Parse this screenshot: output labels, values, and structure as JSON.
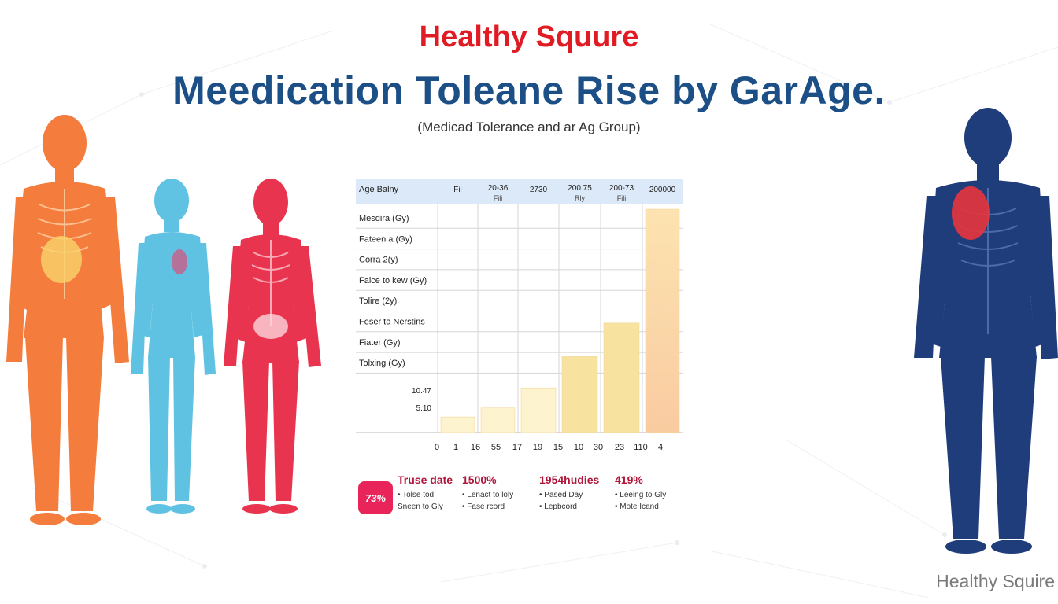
{
  "header": {
    "brand": "Healthy Squure",
    "title": "Meedication Toleane Rise by GarAge.",
    "subtitle": "(Medicad Tolerance and ar Ag Group)"
  },
  "chart_data": {
    "type": "bar",
    "table_header": {
      "first": "Age Balny",
      "columns": [
        {
          "line1": "Fil",
          "line2": ""
        },
        {
          "line1": "20-36",
          "line2": "Fili"
        },
        {
          "line1": "2730",
          "line2": ""
        },
        {
          "line1": "200.75",
          "line2": "Rly"
        },
        {
          "line1": "200-73",
          "line2": "Fili"
        },
        {
          "line1": "200000",
          "line2": ""
        }
      ]
    },
    "row_labels": [
      "Mesdira (Gy)",
      "Fateen a (Gy)",
      "Corra 2(y)",
      "Falce to kew (Gy)",
      "Tolire (2y)",
      "Feser to Nerstins",
      "Fiater (Gy)",
      "Tolxing (Gy)"
    ],
    "y_tick_labels": [
      "10.47",
      "5.10"
    ],
    "x_tick_labels": [
      "0",
      "1",
      "16",
      "55",
      "17",
      "19",
      "15",
      "10",
      "30",
      "23",
      "110",
      "4"
    ],
    "values": [
      0.07,
      0.11,
      0.2,
      0.34,
      0.49,
      1.0
    ],
    "colors": {
      "bar_light": "#fdf3cf",
      "bar_mid": "#f8e2a0",
      "bar_last_top": "#fce3b0",
      "bar_last_bottom": "#f9cba0",
      "header_bg": "#dce9f8",
      "grid": "#d5d5d5"
    }
  },
  "stats": {
    "badge": "73%",
    "items": [
      {
        "head": "Truse date",
        "lines": [
          "• Tolse tod",
          "Sneen to Gly"
        ]
      },
      {
        "head": "1500%",
        "lines": [
          "• Lenact to loly",
          "• Fase rcord"
        ]
      },
      {
        "head": "1954hudies",
        "lines": [
          "• Pased Day",
          "• Lepbcord"
        ]
      },
      {
        "head": "419%",
        "lines": [
          "• Leeing to Gly",
          "• Mote Icand"
        ]
      }
    ]
  },
  "figures": {
    "orange_color": "#f47c3c",
    "blue_color": "#45b8de",
    "red_color": "#e8344f",
    "navy_color": "#1f3d7a"
  },
  "watermark": "Healthy Squire"
}
